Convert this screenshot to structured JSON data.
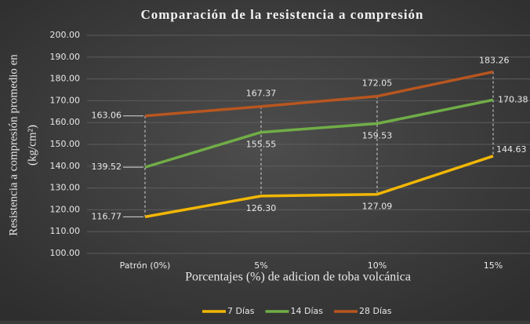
{
  "chart_data": {
    "type": "line",
    "title": "Comparación de la resistencia a compresión",
    "y_label": [
      "Resistencia a compresión promedio en",
      "(kg/cm²)"
    ],
    "x_label": "Porcentajes (%) de adicion de toba volcánica",
    "categories": [
      "Patrón (0%)",
      "5%",
      "10%",
      "15%"
    ],
    "series": [
      {
        "name": "7 Días",
        "color": "#f2b705",
        "values": [
          116.77,
          126.3,
          127.09,
          144.63
        ],
        "value_labels": [
          "116.77",
          "126.30",
          "127.09",
          "144.63"
        ]
      },
      {
        "name": "14 Días",
        "color": "#70ad47",
        "values": [
          139.52,
          155.55,
          159.53,
          170.38
        ],
        "value_labels": [
          "139.52",
          "155.55",
          "159.53",
          "170.38"
        ]
      },
      {
        "name": "28 Días",
        "color": "#b8561f",
        "values": [
          163.06,
          167.37,
          172.05,
          183.26
        ],
        "value_labels": [
          "163.06",
          "167.37",
          "172.05",
          "183.26"
        ]
      }
    ],
    "ylim": [
      100,
      200
    ],
    "yticks": [
      {
        "value": 100,
        "label": "100.00"
      },
      {
        "value": 110,
        "label": "110.00"
      },
      {
        "value": 120,
        "label": "120.00"
      },
      {
        "value": 130,
        "label": "130.00"
      },
      {
        "value": 140,
        "label": "140.00"
      },
      {
        "value": 150,
        "label": "150.00"
      },
      {
        "value": 160,
        "label": "160.00"
      },
      {
        "value": 170,
        "label": "170.00"
      },
      {
        "value": 180,
        "label": "180.00"
      },
      {
        "value": 190,
        "label": "190.00"
      },
      {
        "value": 200,
        "label": "200.00"
      }
    ],
    "grid": true,
    "legend": "bottom"
  }
}
